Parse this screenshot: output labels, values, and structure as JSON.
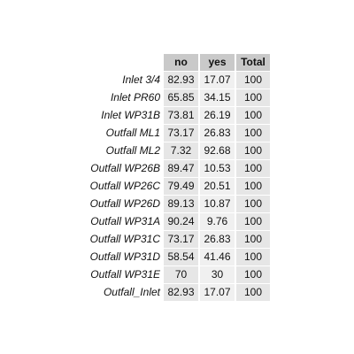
{
  "chart_data": {
    "type": "table",
    "columns": [
      "no",
      "yes",
      "Total"
    ],
    "rows": [
      {
        "label": "Inlet 3/4",
        "values": [
          "82.93",
          "17.07",
          "100"
        ]
      },
      {
        "label": "Inlet PR60",
        "values": [
          "65.85",
          "34.15",
          "100"
        ]
      },
      {
        "label": "Inlet WP31B",
        "values": [
          "73.81",
          "26.19",
          "100"
        ]
      },
      {
        "label": "Outfall ML1",
        "values": [
          "73.17",
          "26.83",
          "100"
        ]
      },
      {
        "label": "Outfall ML2",
        "values": [
          "7.32",
          "92.68",
          "100"
        ]
      },
      {
        "label": "Outfall WP26B",
        "values": [
          "89.47",
          "10.53",
          "100"
        ]
      },
      {
        "label": "Outfall WP26C",
        "values": [
          "79.49",
          "20.51",
          "100"
        ]
      },
      {
        "label": "Outfall WP26D",
        "values": [
          "89.13",
          "10.87",
          "100"
        ]
      },
      {
        "label": "Outfall WP31A",
        "values": [
          "90.24",
          "9.76",
          "100"
        ]
      },
      {
        "label": "Outfall WP31C",
        "values": [
          "73.17",
          "26.83",
          "100"
        ]
      },
      {
        "label": "Outfall WP31D",
        "values": [
          "58.54",
          "41.46",
          "100"
        ]
      },
      {
        "label": "Outfall WP31E",
        "values": [
          "70",
          "30",
          "100"
        ]
      },
      {
        "label": "Outfall_Inlet",
        "values": [
          "82.93",
          "17.07",
          "100"
        ]
      }
    ]
  },
  "colors": {
    "header_bg": "#c9c9c9",
    "cell_bg": "#e6e6e6",
    "cell_bg_alt": "#f0f0f0",
    "text": "#111111"
  }
}
